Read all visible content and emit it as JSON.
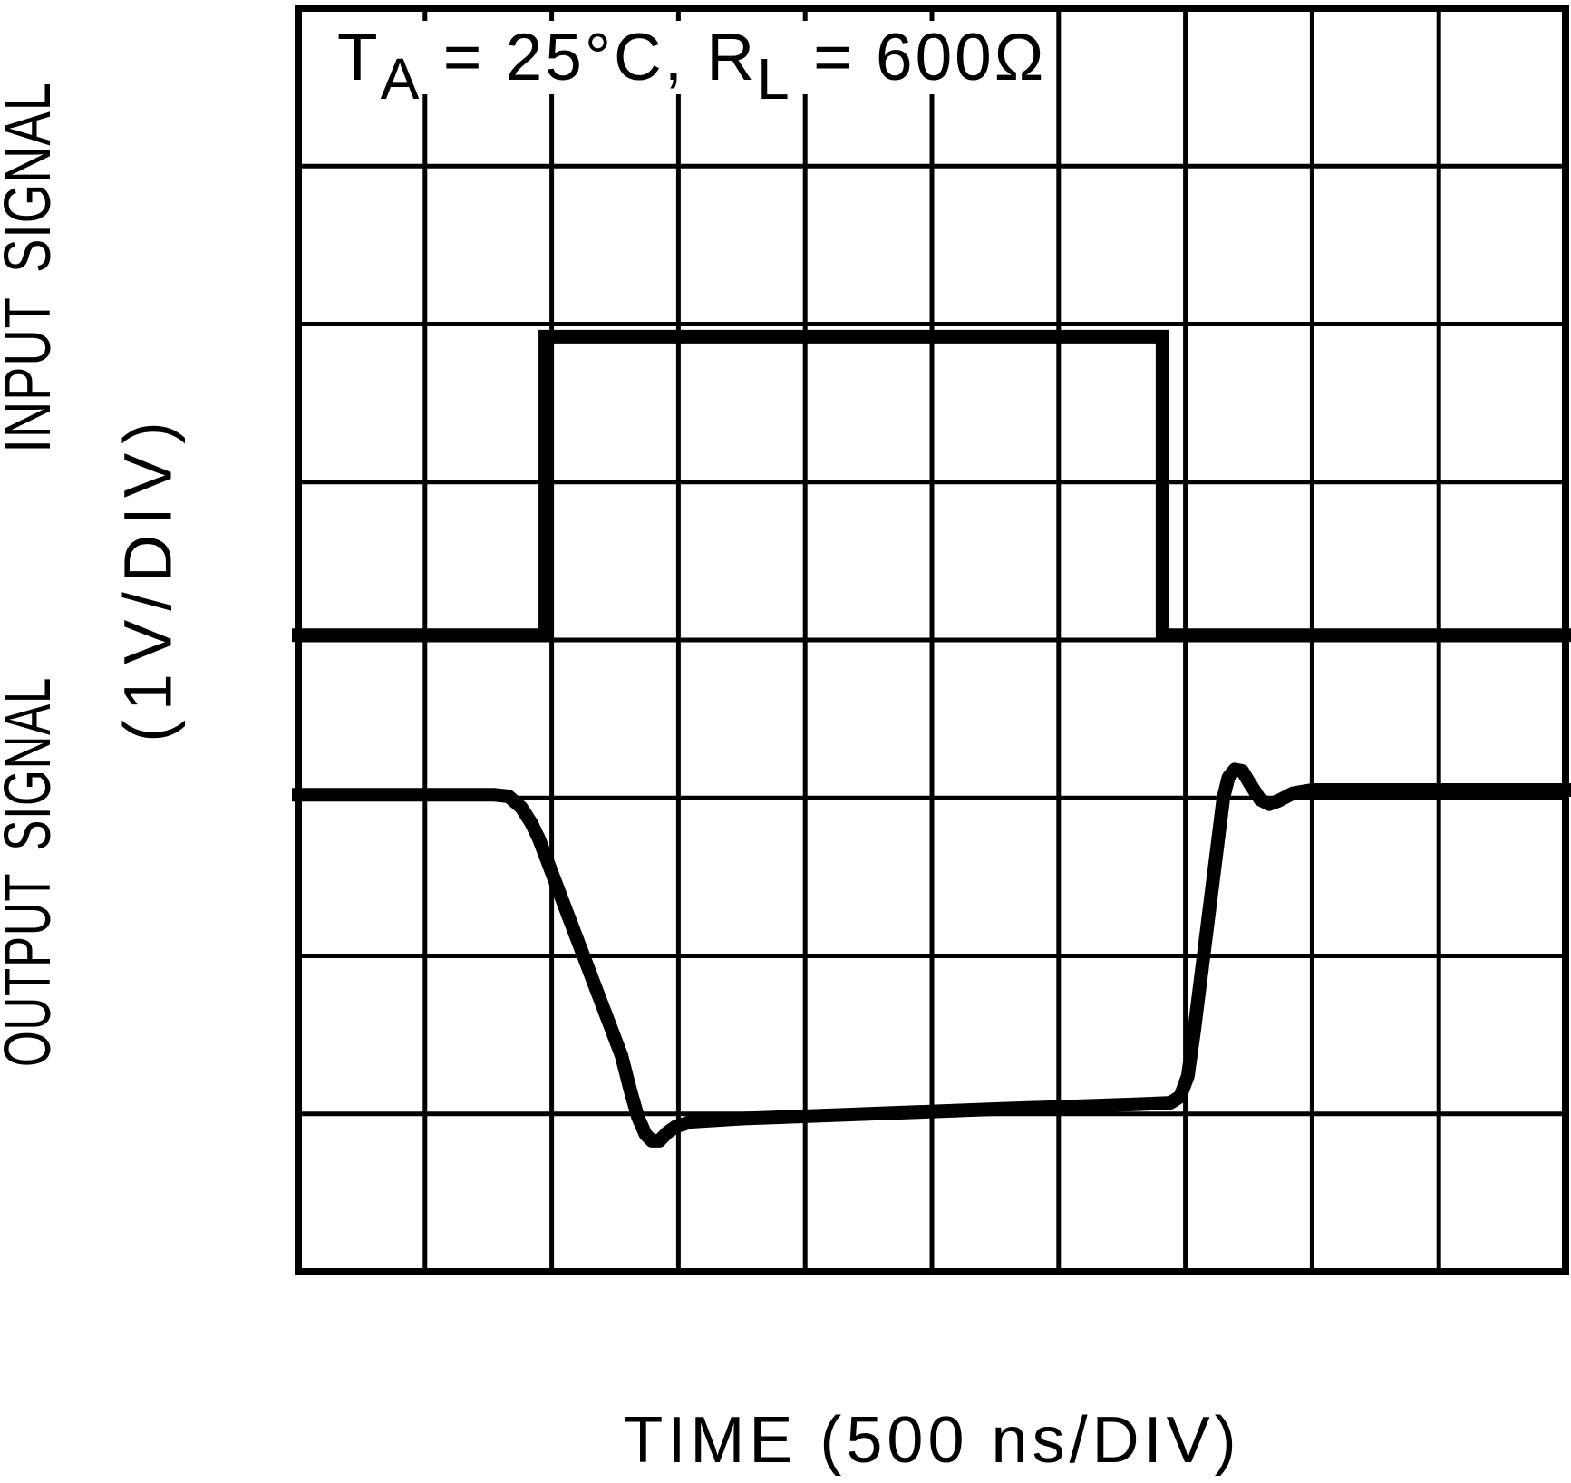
{
  "title_annotation": {
    "t1": "T",
    "sub1": "A",
    "t2": " = 25°C, R",
    "sub2": "L",
    "t3": " = 600Ω",
    "full_text": "TA = 25°C, RL = 600Ω"
  },
  "axes": {
    "x_label": "TIME (500 ns/DIV)",
    "y_label_top": "INPUT SIGNAL",
    "y_label_bottom": "OUTPUT SIGNAL",
    "y_units": "(1V/DIV)"
  },
  "colors": {
    "foreground": "#000000",
    "background": "#ffffff"
  },
  "chart_data": {
    "type": "line",
    "title": "TA = 25°C, RL = 600Ω",
    "xlabel": "TIME (500 ns/DIV)",
    "x_units_per_div": "500 ns",
    "y_units_per_div": "1V",
    "graticule": {
      "cols": 10,
      "rows": 8
    },
    "grid": "on",
    "y_axis_note": "point y-values are graticule divisions measured from the top edge; x-values are divisions from the left edge",
    "input_characteristics": {
      "baseline_div_from_top": 4.0,
      "high_level_div_from_top": 2.08,
      "amplitude_divisions": 2,
      "rise_at_div": 1.95,
      "fall_at_div": 6.82
    },
    "output_characteristics": {
      "high_level_div_from_top": 4.97,
      "low_level_div_from_top": 6.97,
      "swing_divisions": 2,
      "polarity": "inverted relative to input",
      "undershoot_min_div_from_top": 7.17,
      "overshoot_peak_div_from_top": 4.82
    },
    "series": [
      {
        "name": "INPUT SIGNAL",
        "points": [
          [
            -0.05,
            3.97
          ],
          [
            1.95,
            3.97
          ],
          [
            1.95,
            2.08
          ],
          [
            6.82,
            2.08
          ],
          [
            6.82,
            3.97
          ],
          [
            10.05,
            3.97
          ]
        ]
      },
      {
        "name": "OUTPUT SIGNAL",
        "points": [
          [
            -0.05,
            4.98
          ],
          [
            1.55,
            4.98
          ],
          [
            1.66,
            4.99
          ],
          [
            1.76,
            5.06
          ],
          [
            1.84,
            5.16
          ],
          [
            1.9,
            5.26
          ],
          [
            2.55,
            6.63
          ],
          [
            2.62,
            6.85
          ],
          [
            2.68,
            7.02
          ],
          [
            2.74,
            7.13
          ],
          [
            2.79,
            7.17
          ],
          [
            2.85,
            7.17
          ],
          [
            2.91,
            7.12
          ],
          [
            2.98,
            7.08
          ],
          [
            3.1,
            7.05
          ],
          [
            3.5,
            7.03
          ],
          [
            4.5,
            7.0
          ],
          [
            5.5,
            6.97
          ],
          [
            6.6,
            6.94
          ],
          [
            6.88,
            6.93
          ],
          [
            6.96,
            6.89
          ],
          [
            7.02,
            6.76
          ],
          [
            7.07,
            6.47
          ],
          [
            7.3,
            5.0
          ],
          [
            7.34,
            4.87
          ],
          [
            7.39,
            4.82
          ],
          [
            7.45,
            4.83
          ],
          [
            7.51,
            4.91
          ],
          [
            7.59,
            5.01
          ],
          [
            7.66,
            5.04
          ],
          [
            7.73,
            5.02
          ],
          [
            7.85,
            4.97
          ],
          [
            8.0,
            4.95
          ],
          [
            10.05,
            4.95
          ]
        ]
      }
    ]
  }
}
